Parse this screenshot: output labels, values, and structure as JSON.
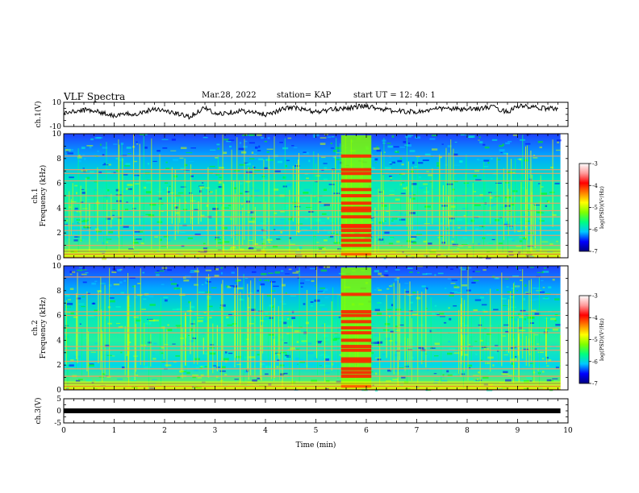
{
  "header": {
    "title": "VLF Spectra",
    "date": "Mar.28, 2022",
    "station": "station= KAP",
    "start": "start  UT  =  12: 40: 1"
  },
  "colors": {
    "trace": "#000000",
    "colormap": [
      "#000080",
      "#0000ff",
      "#00c8ff",
      "#00ffc8",
      "#00ff00",
      "#c8ff00",
      "#ffff00",
      "#ff8000",
      "#ff0000",
      "#ff9a9a",
      "#ffffff"
    ]
  },
  "chart_data": [
    {
      "type": "line",
      "name": "ch1-waveform",
      "ylabel": "ch.1(V)",
      "ylim": [
        -10,
        10
      ],
      "y_tick_labels": [
        "10",
        "-10"
      ],
      "x": [
        0,
        0.5,
        1,
        1.5,
        1.8,
        2,
        2.5,
        2.8,
        3,
        3.5,
        4,
        4.5,
        5,
        5.5,
        6,
        6.5,
        7,
        7.5,
        8,
        8.5,
        8.8,
        9,
        9.5,
        9.8
      ],
      "y": [
        1,
        4,
        -1,
        1,
        5,
        3,
        -2,
        6,
        0,
        3,
        0,
        6,
        2,
        5,
        7,
        3,
        2,
        5,
        4,
        6,
        2,
        7,
        5,
        5
      ]
    },
    {
      "type": "heatmap",
      "name": "ch1-spectrogram",
      "ylabel": "ch.1\nFrequency (kHz)",
      "xlim": [
        0,
        9.85
      ],
      "ylim": [
        0,
        10
      ],
      "y_tick_labels": [
        "0",
        "2",
        "4",
        "6",
        "8",
        "10"
      ],
      "colorbar": {
        "label": "log(PSD)(V²/Hz)",
        "range": [
          -7,
          -3
        ],
        "tick_labels": [
          "-3",
          "-4",
          "-5",
          "-6",
          "-7"
        ]
      },
      "bright_interval_min": [
        5.5,
        6.1
      ],
      "bands_khz": [
        0.3,
        1.0,
        1.8,
        2.2,
        2.6,
        3.3,
        3.8,
        4.4,
        5.0,
        6.2,
        6.8,
        7.1,
        8.2
      ]
    },
    {
      "type": "heatmap",
      "name": "ch2-spectrogram",
      "ylabel": "ch.2\nFrequency (kHz)",
      "xlim": [
        0,
        9.85
      ],
      "ylim": [
        0,
        10
      ],
      "y_tick_labels": [
        "0",
        "2",
        "4",
        "6",
        "8",
        "10"
      ],
      "colorbar": {
        "label": "log(PSD)(V²/Hz)",
        "range": [
          -7,
          -3
        ],
        "tick_labels": [
          "-3",
          "-4",
          "-5",
          "-6",
          "-7"
        ]
      },
      "bright_interval_min": [
        5.5,
        6.1
      ],
      "bands_khz": [
        0.3,
        1.1,
        1.7,
        2.3,
        3.2,
        3.5,
        4.6,
        5.0,
        6.0,
        6.3,
        7.7,
        9.1
      ]
    },
    {
      "type": "line",
      "name": "ch3-waveform",
      "ylabel": "ch.3(V)",
      "ylim": [
        -5,
        5
      ],
      "y_tick_labels": [
        "5",
        "0",
        "-5"
      ],
      "x": [
        0,
        9.85
      ],
      "y": [
        0,
        0
      ]
    }
  ],
  "xaxis": {
    "label": "Time  (min)",
    "xlim": [
      0,
      10
    ],
    "tick_labels": [
      "0",
      "1",
      "2",
      "3",
      "4",
      "5",
      "6",
      "7",
      "8",
      "9",
      "10"
    ]
  }
}
